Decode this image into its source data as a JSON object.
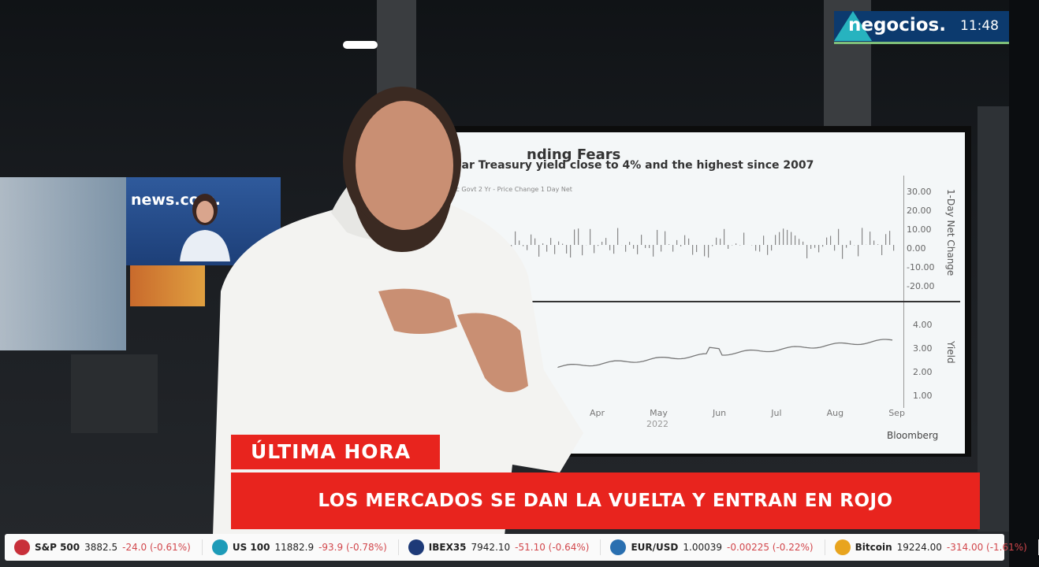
{
  "broadcast": {
    "channel_logo": "negocios.",
    "clock": "11:48",
    "background_monitor_label": "news.com.",
    "lower_third": {
      "tag": "ÚLTIMA HORA",
      "headline": "LOS MERCADOS SE DAN LA VUELTA Y ENTRAN EN ROJO",
      "color": "#e8241e"
    }
  },
  "screen_chart": {
    "title": "nding Fears",
    "subtitle": "ear Treasury yield close to 4% and the highest since 2007",
    "series_label": "eric Govt 2 Yr - Price Change 1 Day Net",
    "top_axis_ticks": [
      "30.00",
      "20.00",
      "10.00",
      "0.00",
      "-10.00",
      "-20.00"
    ],
    "top_axis_label": "1-Day Net Change",
    "bottom_axis_ticks": [
      "4.00",
      "3.00",
      "2.00",
      "1.00"
    ],
    "bottom_axis_label": "Yield",
    "months": [
      "Apr",
      "May",
      "Jun",
      "Jul",
      "Aug",
      "Sep"
    ],
    "year": "2022",
    "source": "Bloomberg"
  },
  "ticker": [
    {
      "name": "S&P 500",
      "value": "3882.5",
      "change": "-24.0 (-0.61%)",
      "icon_color": "#c8303a",
      "icon": "sp500-icon"
    },
    {
      "name": "US 100",
      "value": "11882.9",
      "change": "-93.9 (-0.78%)",
      "icon_color": "#1e9bb8",
      "icon": "us100-icon"
    },
    {
      "name": "IBEX35",
      "value": "7942.10",
      "change": "-51.10 (-0.64%)",
      "icon_color": "#1e3a78",
      "icon": "ibex35-icon"
    },
    {
      "name": "EUR/USD",
      "value": "1.00039",
      "change": "-0.00225 (-0.22%)",
      "icon_color": "#2a6fb0",
      "icon": "globe-icon"
    },
    {
      "name": "Bitcoin",
      "value": "19224.00",
      "change": "-314.00 (-1.61%)",
      "icon_color": "#e8a41e",
      "icon": "bitcoin-icon"
    }
  ]
}
